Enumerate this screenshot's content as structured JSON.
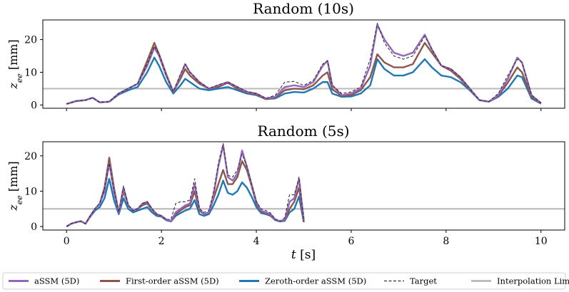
{
  "chart_data": [
    {
      "type": "line",
      "title": "Random (10s)",
      "xlabel": "t [s]",
      "ylabel": "z_ee [mm]",
      "xlim": [
        -0.5,
        10.5
      ],
      "ylim": [
        -1,
        26
      ],
      "yticks": [
        0,
        10,
        20
      ],
      "xticks": [
        0,
        2,
        4,
        6,
        8,
        10
      ],
      "grid": false,
      "interpolation_limit": 5,
      "x": [
        0,
        0.2,
        0.4,
        0.55,
        0.7,
        0.9,
        1.1,
        1.3,
        1.5,
        1.7,
        1.85,
        1.95,
        2.1,
        2.25,
        2.4,
        2.5,
        2.6,
        2.8,
        3.0,
        3.2,
        3.4,
        3.6,
        3.8,
        4.0,
        4.2,
        4.4,
        4.6,
        4.8,
        5.0,
        5.2,
        5.4,
        5.5,
        5.6,
        5.8,
        6.0,
        6.2,
        6.4,
        6.55,
        6.7,
        6.9,
        7.1,
        7.3,
        7.55,
        7.7,
        7.9,
        8.1,
        8.3,
        8.5,
        8.7,
        8.9,
        9.1,
        9.3,
        9.5,
        9.6,
        9.8,
        10.0
      ],
      "series": [
        {
          "name": "aSSM (5D)",
          "values": [
            0.3,
            1.2,
            1.5,
            2.2,
            0.8,
            1.0,
            3.5,
            5.0,
            6.5,
            12.0,
            17.5,
            15.0,
            9.0,
            4.0,
            9.0,
            12.5,
            10.0,
            7.0,
            5.0,
            6.0,
            7.0,
            5.5,
            4.0,
            3.5,
            2.0,
            2.5,
            5.5,
            6.0,
            5.5,
            7.0,
            12.0,
            13.5,
            6.0,
            3.0,
            3.5,
            5.0,
            12.0,
            24.5,
            20.0,
            16.0,
            15.0,
            16.0,
            21.5,
            17.0,
            12.0,
            11.0,
            8.5,
            5.0,
            1.5,
            1.0,
            3.0,
            8.0,
            14.5,
            13.0,
            3.0,
            0.6
          ]
        },
        {
          "name": "First-order aSSM (5D)",
          "values": [
            0.3,
            1.2,
            1.5,
            2.2,
            0.8,
            1.0,
            3.5,
            5.0,
            6.5,
            13.5,
            19.0,
            15.5,
            9.5,
            4.0,
            8.0,
            11.0,
            9.0,
            6.5,
            5.0,
            5.5,
            6.8,
            5.0,
            3.8,
            3.2,
            1.8,
            2.3,
            4.5,
            5.0,
            4.8,
            6.0,
            9.0,
            10.0,
            4.8,
            2.8,
            3.0,
            4.5,
            8.5,
            15.5,
            13.0,
            11.5,
            11.5,
            12.5,
            19.0,
            16.0,
            12.0,
            10.5,
            8.0,
            4.8,
            1.5,
            1.0,
            2.8,
            6.8,
            11.5,
            10.0,
            2.5,
            0.5
          ]
        },
        {
          "name": "Zeroth-order aSSM (5D)",
          "values": [
            0.3,
            1.2,
            1.5,
            2.2,
            0.8,
            1.0,
            3.2,
            4.5,
            5.5,
            10.0,
            14.5,
            12.0,
            7.0,
            3.5,
            6.0,
            8.0,
            7.0,
            5.0,
            4.5,
            5.0,
            5.5,
            4.5,
            3.5,
            3.0,
            1.8,
            2.0,
            3.5,
            4.0,
            3.8,
            5.0,
            7.0,
            7.0,
            3.5,
            2.5,
            2.6,
            3.5,
            6.0,
            14.0,
            11.0,
            9.0,
            9.0,
            10.0,
            14.0,
            11.5,
            9.0,
            8.5,
            7.0,
            4.5,
            1.5,
            1.0,
            2.5,
            5.0,
            9.0,
            8.5,
            2.0,
            0.4
          ]
        },
        {
          "name": "Target",
          "values": [
            0.3,
            1.2,
            1.5,
            2.2,
            0.8,
            1.0,
            3.5,
            5.0,
            6.5,
            12.5,
            18.0,
            15.5,
            9.0,
            4.0,
            9.5,
            12.5,
            10.0,
            7.0,
            5.0,
            6.2,
            7.0,
            5.5,
            4.2,
            3.5,
            2.0,
            3.0,
            7.0,
            7.2,
            6.0,
            7.5,
            12.5,
            13.5,
            6.0,
            3.5,
            4.0,
            5.5,
            14.0,
            25.0,
            19.0,
            15.0,
            14.0,
            15.0,
            21.0,
            17.0,
            12.0,
            11.0,
            8.5,
            5.0,
            1.5,
            1.0,
            3.5,
            9.0,
            14.0,
            13.0,
            3.0,
            0.6
          ]
        }
      ]
    },
    {
      "type": "line",
      "title": "Random (5s)",
      "xlabel": "t [s]",
      "ylabel": "z_ee [mm]",
      "xlim": [
        -0.5,
        10.5
      ],
      "ylim": [
        -1,
        24
      ],
      "yticks": [
        0,
        10,
        20
      ],
      "xticks": [
        0,
        2,
        4,
        6,
        8,
        10
      ],
      "grid": false,
      "interpolation_limit": 5,
      "x": [
        0,
        0.1,
        0.2,
        0.3,
        0.4,
        0.5,
        0.6,
        0.7,
        0.8,
        0.9,
        1.0,
        1.1,
        1.2,
        1.3,
        1.4,
        1.5,
        1.6,
        1.7,
        1.8,
        1.9,
        2.0,
        2.1,
        2.2,
        2.3,
        2.4,
        2.5,
        2.6,
        2.7,
        2.8,
        2.9,
        3.0,
        3.1,
        3.2,
        3.3,
        3.4,
        3.5,
        3.6,
        3.7,
        3.8,
        3.9,
        4.0,
        4.1,
        4.2,
        4.3,
        4.4,
        4.5,
        4.6,
        4.7,
        4.8,
        4.9,
        5.0
      ],
      "series": [
        {
          "name": "aSSM (5D)",
          "values": [
            0,
            0.8,
            1.2,
            1.5,
            0.8,
            3.0,
            5.0,
            6.5,
            10.0,
            18.0,
            10.0,
            4.0,
            11.0,
            6.0,
            4.5,
            5.0,
            6.5,
            7.0,
            5.0,
            3.5,
            3.0,
            2.0,
            1.5,
            4.0,
            5.0,
            6.0,
            6.5,
            12.0,
            5.0,
            3.5,
            4.0,
            9.0,
            17.0,
            23.0,
            14.0,
            13.0,
            15.0,
            21.5,
            17.0,
            12.0,
            7.0,
            4.5,
            4.0,
            3.5,
            2.0,
            1.5,
            2.0,
            7.0,
            8.0,
            13.5,
            2.0
          ]
        },
        {
          "name": "First-order aSSM (5D)",
          "values": [
            0,
            0.8,
            1.2,
            1.5,
            0.8,
            3.0,
            5.0,
            6.5,
            11.0,
            19.5,
            11.0,
            4.0,
            10.0,
            6.0,
            4.5,
            5.0,
            6.0,
            6.5,
            4.8,
            3.3,
            3.0,
            2.0,
            1.5,
            3.5,
            4.5,
            5.5,
            6.0,
            10.0,
            4.5,
            3.5,
            4.0,
            8.0,
            12.0,
            16.0,
            12.0,
            12.0,
            14.0,
            18.5,
            16.0,
            11.5,
            6.5,
            4.2,
            3.8,
            3.2,
            2.0,
            1.5,
            1.8,
            5.0,
            7.0,
            11.0,
            1.5
          ]
        },
        {
          "name": "Zeroth-order aSSM (5D)",
          "values": [
            0,
            0.8,
            1.2,
            1.5,
            0.8,
            2.8,
            4.5,
            5.5,
            8.0,
            13.5,
            7.5,
            3.5,
            8.0,
            5.0,
            4.0,
            4.5,
            5.0,
            5.5,
            4.0,
            3.0,
            2.8,
            1.8,
            1.4,
            3.0,
            3.8,
            4.5,
            5.0,
            7.5,
            3.5,
            3.0,
            3.5,
            6.0,
            9.0,
            13.0,
            9.5,
            9.0,
            10.0,
            12.5,
            11.0,
            8.5,
            5.5,
            3.8,
            3.5,
            3.0,
            1.8,
            1.4,
            1.6,
            4.0,
            5.0,
            8.5,
            1.2
          ]
        },
        {
          "name": "Target",
          "values": [
            0,
            0.8,
            1.2,
            1.5,
            0.8,
            3.0,
            5.0,
            6.5,
            10.5,
            18.0,
            10.0,
            4.0,
            11.5,
            6.0,
            4.5,
            5.0,
            6.5,
            7.0,
            5.0,
            3.5,
            3.0,
            2.0,
            2.0,
            6.5,
            7.0,
            7.0,
            7.5,
            13.5,
            5.0,
            4.0,
            4.5,
            10.0,
            18.0,
            23.5,
            14.5,
            14.0,
            16.0,
            20.5,
            17.0,
            12.0,
            7.0,
            5.0,
            4.5,
            3.8,
            2.0,
            1.5,
            2.5,
            9.0,
            9.0,
            14.0,
            1.5
          ]
        }
      ]
    }
  ],
  "legend": {
    "placement": "bottom",
    "items": [
      {
        "label": "aSSM (5D)",
        "color": "#9467bd",
        "style": "solid"
      },
      {
        "label": "First-order aSSM (5D)",
        "color": "#8c564b",
        "style": "solid"
      },
      {
        "label": "Zeroth-order aSSM (5D)",
        "color": "#1f77b4",
        "style": "solid"
      },
      {
        "label": "Target",
        "color": "#333333",
        "style": "dashed"
      },
      {
        "label": "Interpolation Limit",
        "color": "#bdbdbd",
        "style": "solid"
      }
    ]
  },
  "colors": {
    "assm": "#9467bd",
    "first_order": "#8c564b",
    "zeroth_order": "#1f77b4",
    "target": "#333333",
    "interp_limit": "#bdbdbd"
  }
}
